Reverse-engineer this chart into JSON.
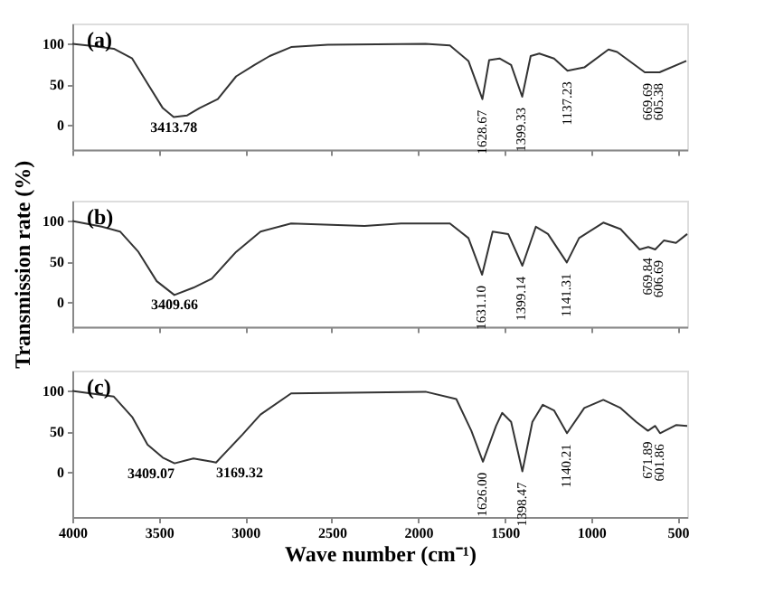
{
  "chart_data": [
    {
      "type": "line",
      "xlim": [
        4000,
        445
      ],
      "ylim": [
        -30,
        125
      ],
      "xticks": [
        4000,
        3500,
        3000,
        2500,
        2000,
        1500,
        1000,
        500
      ],
      "yticks": [
        0,
        50,
        100
      ],
      "tick_labels": "y",
      "grid": false,
      "series": [
        {
          "color": "#333333",
          "x": [
            4000,
            3866,
            3760,
            3654,
            3565,
            3477,
            3414,
            3336,
            3265,
            3159,
            3053,
            2947,
            2859,
            2735,
            2523,
            1958,
            1817,
            1710,
            1629,
            1590,
            1530,
            1463,
            1399,
            1350,
            1300,
            1215,
            1137,
            1040,
            900,
            850,
            690,
            605,
            450
          ],
          "values": [
            100,
            97,
            94,
            82,
            51,
            21,
            10,
            12,
            21,
            32,
            60,
            74,
            85,
            96,
            99,
            100,
            98,
            79,
            32,
            80,
            82,
            74,
            35,
            85,
            88,
            82,
            67,
            71,
            93,
            90,
            65,
            65,
            79
          ]
        }
      ],
      "annotations": [
        "(a)",
        {
          "text": "3413.78",
          "x": 3413.78,
          "y": 10
        },
        {
          "text": "1628.67",
          "x": 1628.67,
          "y": 32
        },
        {
          "text": "1399.33",
          "x": 1399.33,
          "y": 35
        },
        {
          "text": "1137.23",
          "x": 1137.23,
          "y": 67
        },
        {
          "text": "669.69",
          "x": 669.69,
          "y": 65
        },
        {
          "text": "605.38",
          "x": 605.38,
          "y": 65
        }
      ]
    },
    {
      "type": "line",
      "xlim": [
        4000,
        445
      ],
      "ylim": [
        -30,
        125
      ],
      "xticks": [
        4000,
        3500,
        3000,
        2500,
        2000,
        1500,
        1000,
        500
      ],
      "yticks": [
        0,
        50,
        100
      ],
      "tick_labels": "y",
      "grid": false,
      "ylabel": "Transmission rate (%)",
      "series": [
        {
          "color": "#333333",
          "x": [
            4000,
            3830,
            3724,
            3618,
            3512,
            3410,
            3300,
            3194,
            3053,
            2912,
            2735,
            2311,
            2100,
            1817,
            1710,
            1631,
            1570,
            1480,
            1398,
            1320,
            1250,
            1141,
            1070,
            930,
            830,
            720,
            670,
            630,
            580,
            510,
            445
          ],
          "values": [
            100,
            93,
            87,
            62,
            26,
            9,
            18,
            29,
            62,
            87,
            97,
            94,
            97,
            97,
            79,
            34,
            87,
            84,
            45,
            93,
            84,
            49,
            79,
            98,
            90,
            65,
            68,
            65,
            76,
            73,
            84
          ]
        }
      ],
      "annotations": [
        "(b)",
        {
          "text": "3409.66",
          "x": 3409.66,
          "y": 9
        },
        {
          "text": "1631.10",
          "x": 1631.1,
          "y": 34
        },
        {
          "text": "1399.14",
          "x": 1399.14,
          "y": 45
        },
        {
          "text": "1141.31",
          "x": 1141.31,
          "y": 49
        },
        {
          "text": "669.84",
          "x": 669.84,
          "y": 68
        },
        {
          "text": "606.69",
          "x": 606.69,
          "y": 65
        }
      ]
    },
    {
      "type": "line",
      "xlim": [
        4000,
        445
      ],
      "ylim": [
        -55,
        125
      ],
      "xticks": [
        4000,
        3500,
        3000,
        2500,
        2000,
        1500,
        1000,
        500
      ],
      "yticks": [
        0,
        50,
        100
      ],
      "grid": false,
      "xlabel": "Wave number (cm⁻¹)",
      "series": [
        {
          "color": "#333333",
          "x": [
            4000,
            3866,
            3760,
            3654,
            3565,
            3477,
            3409,
            3300,
            3194,
            3169,
            3018,
            2912,
            2735,
            1958,
            1780,
            1693,
            1626,
            1550,
            1515,
            1463,
            1398,
            1340,
            1280,
            1215,
            1140,
            1040,
            930,
            830,
            740,
            672,
            630,
            602,
            510,
            445
          ],
          "values": [
            100,
            96,
            93,
            68,
            34,
            18,
            11,
            17,
            13,
            12,
            46,
            71,
            97,
            99,
            90,
            51,
            13,
            57,
            73,
            62,
            1,
            62,
            83,
            76,
            48,
            79,
            89,
            79,
            62,
            51,
            57,
            48,
            58,
            57
          ]
        }
      ],
      "annotations": [
        "(c)",
        {
          "text": "3409.07",
          "x": 3409.07,
          "y": 11
        },
        {
          "text": "3169.32",
          "x": 3169.32,
          "y": 12
        },
        {
          "text": "1626.00",
          "x": 1626,
          "y": 13
        },
        {
          "text": "1398.47",
          "x": 1398.47,
          "y": 1
        },
        {
          "text": "1140.21",
          "x": 1140.21,
          "y": 48
        },
        {
          "text": "671.89",
          "x": 671.89,
          "y": 51
        },
        {
          "text": "601.86",
          "x": 601.86,
          "y": 48
        }
      ]
    }
  ]
}
